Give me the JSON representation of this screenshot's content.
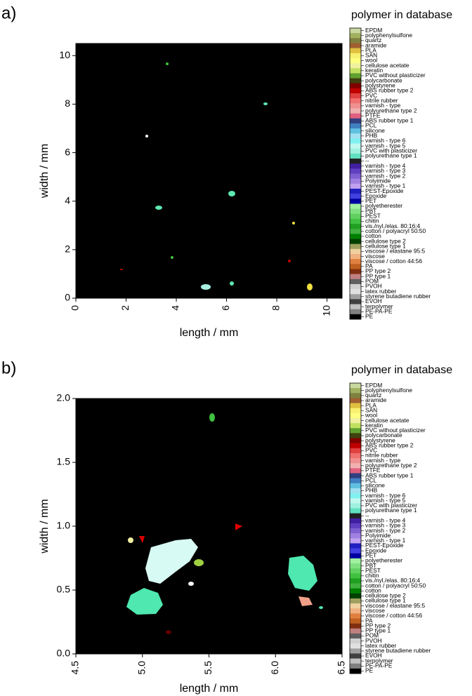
{
  "chart_data": [
    {
      "type": "image",
      "panel_label": "a)",
      "x_label": "length / mm",
      "y_label": "width / mm",
      "xlim": [
        0,
        10.6
      ],
      "ylim": [
        0,
        10.5
      ],
      "xticks": [
        0,
        2,
        4,
        6,
        8,
        10
      ],
      "yticks": [
        0,
        2,
        4,
        6,
        8,
        10
      ],
      "legend_title": "polymer in database",
      "legend_labels": [
        "EPDM",
        "polyphenylsulfone",
        "quartz",
        "aramide",
        "PLA",
        "SAN",
        "wool",
        "cellulose acetate",
        "keratin",
        "PVC without plasticizer",
        "polycarbonate",
        "polystyrene",
        "ABS rubber type 2",
        "PVC",
        "nitrile rubber",
        "varnish - type",
        "polyurethane type 2",
        "PTFE",
        "ABS rubber type 1",
        "PCL",
        "silicone",
        "PHB",
        "varnish - type 6",
        "varnish - type 5",
        "PVC with plasticizer",
        "polyurethane type 1",
        "--",
        "varnish - type 4",
        "varnish - type 3",
        "varnish - type 2",
        "Polyimide",
        "varnish - type 1",
        "PEST-Epoxide",
        "Epoxide",
        "PET",
        "polyetherester",
        "PBT",
        "PEST",
        "chitin",
        "vis./nyl./elas. 80:16:4",
        "cotton / polyacryl 50:50",
        "cotton",
        "cellulose type 2",
        "cellulose type 1",
        "viscose / elastane 95:5",
        "viscose",
        "viscose / cotton 44:56",
        "PA",
        "PP type 2",
        "PP type 1",
        "POM",
        "PVOH",
        "latex rubber",
        "styrene butadiene rubber",
        "EVOH",
        "terpolymer",
        "PE-PA-PE",
        "PE"
      ],
      "legend_colors": [
        "#c8d8a0",
        "#a0b060",
        "#808040",
        "#a06030",
        "#e0c040",
        "#f8f070",
        "#ffff80",
        "#f0f0a0",
        "#c0e060",
        "#60a030",
        "#404010",
        "#800000",
        "#c00000",
        "#e04040",
        "#f07070",
        "#f09090",
        "#f0b0b0",
        "#e06080",
        "#304080",
        "#4080c0",
        "#60c0e0",
        "#a0e0f0",
        "#80f0f0",
        "#c0f8f0",
        "#a0f0e0",
        "#60e0c0",
        "#202020",
        "#4020a0",
        "#6040c0",
        "#8060d0",
        "#a080e0",
        "#c0a0f0",
        "#2020c0",
        "#4040e0",
        "#0000a0",
        "#a0f0a0",
        "#80e080",
        "#60d060",
        "#40c040",
        "#20a020",
        "#40b040",
        "#008000",
        "#004000",
        "#a0a060",
        "#f0d0a0",
        "#f0b080",
        "#e08040",
        "#c06020",
        "#803010",
        "#c08080",
        "#606060",
        "#d0d0d0",
        "#e0e0e0",
        "#a0a0a0",
        "#404040",
        "#c0c0c0",
        "#808080",
        "#000000"
      ]
    },
    {
      "type": "image",
      "panel_label": "b)",
      "x_label": "length / mm",
      "y_label": "width / mm",
      "xlim": [
        4.5,
        6.5
      ],
      "ylim": [
        0,
        2
      ],
      "xticks": [
        4.5,
        {
          "value": 5,
          "label": "5.0"
        },
        5.5,
        {
          "value": 6,
          "label": "6.0"
        },
        6.5
      ],
      "yticks": [
        {
          "value": 0,
          "label": "0.0"
        },
        0.5,
        {
          "value": 1,
          "label": "1.0"
        },
        1.5,
        {
          "value": 2,
          "label": "2.0"
        }
      ],
      "legend_title": "polymer in database",
      "legend_labels": [
        "EPDM",
        "polyphenylsulfone",
        "quartz",
        "aramide",
        "PLA",
        "SAN",
        "wool",
        "cellulose acetate",
        "keratin",
        "PVC without plasticizer",
        "polycarbonate",
        "polystyrene",
        "ABS rubber type 2",
        "PVC",
        "nitrile rubber",
        "varnish - type",
        "polyurethane type 2",
        "PTFE",
        "ABS rubber type 1",
        "PCL",
        "silicone",
        "PHB",
        "varnish - type 6",
        "varnish - type 5",
        "PVC with plasticizer",
        "polyurethane type 1",
        "--",
        "varnish - type 4",
        "varnish - type 3",
        "varnish - type 2",
        "Polyimide",
        "varnish - type 1",
        "PEST-Epoxide",
        "Epoxide",
        "PET",
        "polyetherester",
        "PBT",
        "PEST",
        "chitin",
        "vis./nyl./elas. 80:16:4",
        "cotton / polyacryl 50:50",
        "cotton",
        "cellulose type 2",
        "cellulose type 1",
        "viscose / elastane 95:5",
        "viscose",
        "viscose / cotton 44:56",
        "PA",
        "PP type 2",
        "PP type 1",
        "POM",
        "PVOH",
        "latex rubber",
        "styrene butadiene rubber",
        "EVOH",
        "terpolymer",
        "PE-PA-PE",
        "PE"
      ],
      "legend_colors": [
        "#c8d8a0",
        "#a0b060",
        "#808040",
        "#a06030",
        "#e0c040",
        "#f8f070",
        "#ffff80",
        "#f0f0a0",
        "#c0e060",
        "#60a030",
        "#404010",
        "#800000",
        "#c00000",
        "#e04040",
        "#f07070",
        "#f09090",
        "#f0b0b0",
        "#e06080",
        "#304080",
        "#4080c0",
        "#60c0e0",
        "#a0e0f0",
        "#80f0f0",
        "#c0f8f0",
        "#a0f0e0",
        "#60e0c0",
        "#202020",
        "#4020a0",
        "#6040c0",
        "#8060d0",
        "#a080e0",
        "#c0a0f0",
        "#2020c0",
        "#4040e0",
        "#0000a0",
        "#a0f0a0",
        "#80e080",
        "#60d060",
        "#40c040",
        "#20a020",
        "#40b040",
        "#008000",
        "#004000",
        "#a0a060",
        "#f0d0a0",
        "#f0b080",
        "#e08040",
        "#c06020",
        "#803010",
        "#c08080",
        "#606060",
        "#d0d0d0",
        "#e0e0e0",
        "#a0a0a0",
        "#404040",
        "#c0c0c0",
        "#808080",
        "#000000"
      ]
    }
  ]
}
